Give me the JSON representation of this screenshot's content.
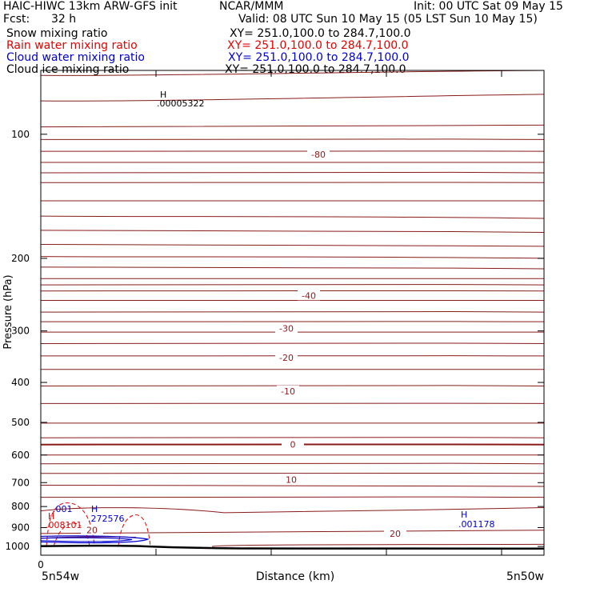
{
  "header": {
    "title": "HAIC-HIWC 13km ARW-GFS init",
    "org": "NCAR/MMM",
    "init": "Init: 00 UTC Sat 09 May 15",
    "fcst_label": "Fcst:",
    "fcst_value": "32 h",
    "valid": "Valid: 08 UTC Sun 10 May 15 (05 LST Sun 10 May 15)"
  },
  "fields": [
    {
      "name": "Snow mixing ratio",
      "xy": "XY= 251.0,100.0 to 284.7,100.0",
      "color": "#000000"
    },
    {
      "name": "Rain water mixing ratio",
      "xy": "XY= 251.0,100.0 to 284.7,100.0",
      "color": "#e60000"
    },
    {
      "name": "Cloud water mixing ratio",
      "xy": "XY= 251.0,100.0 to 284.7,100.0",
      "color": "#0000d0"
    },
    {
      "name": "Cloud ice mixing ratio",
      "xy": "XY= 251.0,100.0 to 284.7,100.0",
      "color": "#000000"
    }
  ],
  "chart_data": {
    "type": "contour",
    "ylabel": "Pressure (hPa)",
    "xlabel": "Distance (km)",
    "x_origin_label": "0",
    "x_left_label": "5n54w",
    "x_right_label": "5n50w",
    "y_scale": "log",
    "ylim": [
      1050,
      70
    ],
    "yticks": [
      100,
      200,
      300,
      400,
      500,
      600,
      700,
      800,
      900,
      1000
    ],
    "temperature_contour_color": "#8b1a1a",
    "temperature_labels": [
      {
        "text": "-80",
        "p": 112
      },
      {
        "text": "-40",
        "p": 246
      },
      {
        "text": "-30",
        "p": 296
      },
      {
        "text": "-20",
        "p": 348
      },
      {
        "text": "-10",
        "p": 420
      },
      {
        "text": "0",
        "p": 566
      },
      {
        "text": "10",
        "p": 688
      },
      {
        "text": "20",
        "p": 930
      },
      {
        "text": "20",
        "p": 913
      }
    ],
    "extrema": [
      {
        "symbol": "H",
        "value": ".00005322",
        "color": "#000000"
      },
      {
        "symbol": "H",
        "value": ".272576",
        "color": "#0000d0"
      },
      {
        "symbol": "H",
        "value": ".008101",
        "color": "#e60000"
      },
      {
        "symbol": "H",
        "value": ".001178",
        "color": "#0000d0"
      }
    ],
    "cloud_water_label": ".001",
    "grid": false
  }
}
